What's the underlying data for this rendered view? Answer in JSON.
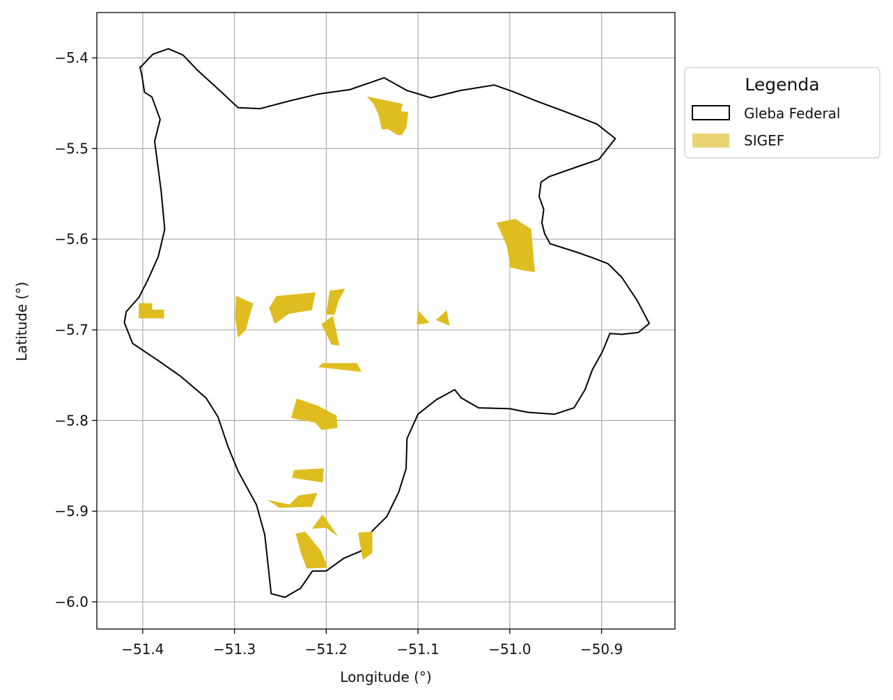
{
  "chart_data": {
    "type": "map",
    "xlabel": "Longitude (°)",
    "ylabel": "Latitude (°)",
    "xlim": [
      -51.45,
      -50.82
    ],
    "ylim": [
      -6.03,
      -5.35
    ],
    "xticks": [
      -51.4,
      -51.3,
      -51.2,
      -51.1,
      -51.0,
      -50.9
    ],
    "yticks": [
      -5.4,
      -5.5,
      -5.6,
      -5.7,
      -5.8,
      -5.9,
      -6.0
    ],
    "xtick_labels": [
      "−51.4",
      "−51.3",
      "−51.2",
      "−51.1",
      "−51.0",
      "−50.9"
    ],
    "ytick_labels": [
      "−5.4",
      "−5.5",
      "−5.6",
      "−5.7",
      "−5.8",
      "−5.9",
      "−6.0"
    ],
    "grid": true,
    "legend": {
      "title": "Legenda",
      "placement": "outside-upper-right",
      "entries": [
        {
          "label": "Gleba Federal",
          "style": "outline",
          "color": "#000000"
        },
        {
          "label": "SIGEF",
          "style": "fill",
          "color": "#e9d373"
        }
      ]
    },
    "colors": {
      "boundary": "#000000",
      "sigef": "#dfbd1f",
      "grid": "#b0b0b0"
    },
    "layers": {
      "gleba_federal": [
        [
          [
            -51.403,
            -5.41
          ],
          [
            -51.401,
            -5.419
          ],
          [
            -51.398,
            -5.438
          ],
          [
            -51.39,
            -5.443
          ],
          [
            -51.381,
            -5.468
          ],
          [
            -51.387,
            -5.492
          ],
          [
            -51.38,
            -5.546
          ],
          [
            -51.376,
            -5.589
          ],
          [
            -51.383,
            -5.619
          ],
          [
            -51.394,
            -5.644
          ],
          [
            -51.404,
            -5.664
          ],
          [
            -51.418,
            -5.68
          ],
          [
            -51.42,
            -5.692
          ],
          [
            -51.411,
            -5.715
          ],
          [
            -51.383,
            -5.734
          ],
          [
            -51.359,
            -5.751
          ],
          [
            -51.331,
            -5.775
          ],
          [
            -51.318,
            -5.796
          ],
          [
            -51.307,
            -5.829
          ],
          [
            -51.296,
            -5.856
          ],
          [
            -51.276,
            -5.893
          ],
          [
            -51.267,
            -5.926
          ],
          [
            -51.26,
            -5.991
          ],
          [
            -51.245,
            -5.995
          ],
          [
            -51.228,
            -5.985
          ],
          [
            -51.215,
            -5.966
          ],
          [
            -51.2,
            -5.966
          ],
          [
            -51.181,
            -5.952
          ],
          [
            -51.162,
            -5.944
          ],
          [
            -51.15,
            -5.922
          ],
          [
            -51.134,
            -5.906
          ],
          [
            -51.121,
            -5.879
          ],
          [
            -51.113,
            -5.853
          ],
          [
            -51.112,
            -5.82
          ],
          [
            -51.1,
            -5.793
          ],
          [
            -51.08,
            -5.777
          ],
          [
            -51.06,
            -5.766
          ],
          [
            -51.053,
            -5.775
          ],
          [
            -51.034,
            -5.786
          ],
          [
            -51.0,
            -5.787
          ],
          [
            -50.98,
            -5.791
          ],
          [
            -50.951,
            -5.793
          ],
          [
            -50.93,
            -5.786
          ],
          [
            -50.918,
            -5.766
          ],
          [
            -50.91,
            -5.744
          ],
          [
            -50.899,
            -5.724
          ],
          [
            -50.891,
            -5.704
          ],
          [
            -50.878,
            -5.705
          ],
          [
            -50.86,
            -5.703
          ],
          [
            -50.848,
            -5.693
          ],
          [
            -50.861,
            -5.668
          ],
          [
            -50.878,
            -5.642
          ],
          [
            -50.893,
            -5.627
          ],
          [
            -50.911,
            -5.62
          ],
          [
            -50.928,
            -5.614
          ],
          [
            -50.956,
            -5.605
          ],
          [
            -50.962,
            -5.594
          ],
          [
            -50.965,
            -5.582
          ],
          [
            -50.963,
            -5.567
          ],
          [
            -50.968,
            -5.553
          ],
          [
            -50.966,
            -5.537
          ],
          [
            -50.957,
            -5.531
          ],
          [
            -50.926,
            -5.52
          ],
          [
            -50.903,
            -5.512
          ],
          [
            -50.885,
            -5.489
          ],
          [
            -50.905,
            -5.473
          ],
          [
            -50.938,
            -5.46
          ],
          [
            -50.97,
            -5.448
          ],
          [
            -50.997,
            -5.437
          ],
          [
            -51.017,
            -5.43
          ],
          [
            -51.054,
            -5.436
          ],
          [
            -51.086,
            -5.444
          ],
          [
            -51.112,
            -5.436
          ],
          [
            -51.137,
            -5.422
          ],
          [
            -51.174,
            -5.435
          ],
          [
            -51.209,
            -5.44
          ],
          [
            -51.238,
            -5.447
          ],
          [
            -51.272,
            -5.456
          ],
          [
            -51.296,
            -5.455
          ],
          [
            -51.316,
            -5.436
          ],
          [
            -51.341,
            -5.413
          ],
          [
            -51.356,
            -5.397
          ],
          [
            -51.372,
            -5.39
          ],
          [
            -51.389,
            -5.396
          ],
          [
            -51.402,
            -5.41
          ]
        ]
      ],
      "sigef": [
        [
          [
            -51.155,
            -5.443
          ],
          [
            -51.117,
            -5.451
          ],
          [
            -51.119,
            -5.459
          ],
          [
            -51.111,
            -5.46
          ],
          [
            -51.113,
            -5.477
          ],
          [
            -51.118,
            -5.485
          ],
          [
            -51.122,
            -5.485
          ],
          [
            -51.133,
            -5.478
          ],
          [
            -51.139,
            -5.479
          ],
          [
            -51.143,
            -5.462
          ],
          [
            -51.148,
            -5.451
          ],
          [
            -51.155,
            -5.443
          ]
        ],
        [
          [
            -51.014,
            -5.582
          ],
          [
            -50.994,
            -5.578
          ],
          [
            -50.977,
            -5.589
          ],
          [
            -50.973,
            -5.636
          ],
          [
            -50.986,
            -5.634
          ],
          [
            -50.999,
            -5.631
          ],
          [
            -51.003,
            -5.607
          ],
          [
            -51.014,
            -5.582
          ]
        ],
        [
          [
            -51.404,
            -5.687
          ],
          [
            -51.377,
            -5.687
          ],
          [
            -51.377,
            -5.678
          ],
          [
            -51.39,
            -5.678
          ],
          [
            -51.39,
            -5.671
          ],
          [
            -51.404,
            -5.671
          ],
          [
            -51.404,
            -5.687
          ]
        ],
        [
          [
            -51.298,
            -5.663
          ],
          [
            -51.28,
            -5.671
          ],
          [
            -51.288,
            -5.7
          ],
          [
            -51.296,
            -5.708
          ],
          [
            -51.299,
            -5.686
          ],
          [
            -51.298,
            -5.663
          ]
        ],
        [
          [
            -51.254,
            -5.663
          ],
          [
            -51.212,
            -5.659
          ],
          [
            -51.216,
            -5.678
          ],
          [
            -51.241,
            -5.682
          ],
          [
            -51.256,
            -5.693
          ],
          [
            -51.262,
            -5.676
          ],
          [
            -51.254,
            -5.663
          ]
        ],
        [
          [
            -51.196,
            -5.657
          ],
          [
            -51.18,
            -5.655
          ],
          [
            -51.187,
            -5.668
          ],
          [
            -51.191,
            -5.683
          ],
          [
            -51.2,
            -5.683
          ],
          [
            -51.196,
            -5.657
          ]
        ],
        [
          [
            -51.205,
            -5.694
          ],
          [
            -51.193,
            -5.685
          ],
          [
            -51.186,
            -5.717
          ],
          [
            -51.194,
            -5.716
          ],
          [
            -51.205,
            -5.694
          ]
        ],
        [
          [
            -51.208,
            -5.741
          ],
          [
            -51.162,
            -5.746
          ],
          [
            -51.167,
            -5.737
          ],
          [
            -51.204,
            -5.737
          ],
          [
            -51.208,
            -5.741
          ]
        ],
        [
          [
            -51.1,
            -5.679
          ],
          [
            -51.088,
            -5.692
          ],
          [
            -51.101,
            -5.694
          ],
          [
            -51.1,
            -5.679
          ]
        ],
        [
          [
            -51.08,
            -5.689
          ],
          [
            -51.066,
            -5.695
          ],
          [
            -51.069,
            -5.679
          ],
          [
            -51.08,
            -5.689
          ]
        ],
        [
          [
            -51.238,
            -5.797
          ],
          [
            -51.212,
            -5.802
          ],
          [
            -51.205,
            -5.81
          ],
          [
            -51.188,
            -5.808
          ],
          [
            -51.189,
            -5.795
          ],
          [
            -51.209,
            -5.784
          ],
          [
            -51.232,
            -5.776
          ],
          [
            -51.238,
            -5.797
          ]
        ],
        [
          [
            -51.237,
            -5.863
          ],
          [
            -51.204,
            -5.868
          ],
          [
            -51.203,
            -5.853
          ],
          [
            -51.235,
            -5.855
          ],
          [
            -51.237,
            -5.863
          ]
        ],
        [
          [
            -51.263,
            -5.888
          ],
          [
            -51.24,
            -5.893
          ],
          [
            -51.23,
            -5.883
          ],
          [
            -51.21,
            -5.88
          ],
          [
            -51.216,
            -5.895
          ],
          [
            -51.251,
            -5.896
          ],
          [
            -51.263,
            -5.888
          ]
        ],
        [
          [
            -51.215,
            -5.919
          ],
          [
            -51.2,
            -5.918
          ],
          [
            -51.188,
            -5.927
          ],
          [
            -51.204,
            -5.904
          ],
          [
            -51.215,
            -5.919
          ]
        ],
        [
          [
            -51.233,
            -5.925
          ],
          [
            -51.223,
            -5.923
          ],
          [
            -51.206,
            -5.944
          ],
          [
            -51.199,
            -5.962
          ],
          [
            -51.221,
            -5.963
          ],
          [
            -51.227,
            -5.947
          ],
          [
            -51.233,
            -5.925
          ]
        ],
        [
          [
            -51.165,
            -5.924
          ],
          [
            -51.15,
            -5.923
          ],
          [
            -51.15,
            -5.946
          ],
          [
            -51.16,
            -5.953
          ],
          [
            -51.165,
            -5.924
          ]
        ]
      ]
    }
  }
}
